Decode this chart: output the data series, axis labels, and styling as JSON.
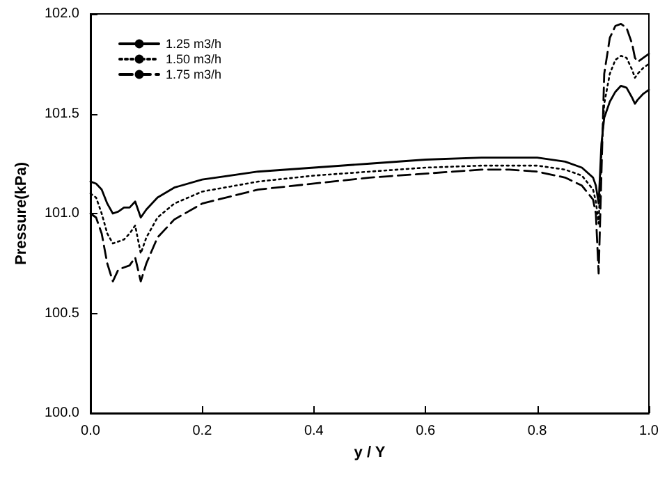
{
  "chart_data": {
    "type": "line",
    "xlabel": "y / Y",
    "ylabel": "Pressure(kPa)",
    "x": [
      0,
      0.01,
      0.02,
      0.03,
      0.04,
      0.05,
      0.06,
      0.07,
      0.08,
      0.09,
      0.1,
      0.12,
      0.15,
      0.2,
      0.3,
      0.4,
      0.5,
      0.6,
      0.7,
      0.75,
      0.8,
      0.85,
      0.88,
      0.9,
      0.905,
      0.91,
      0.915,
      0.92,
      0.93,
      0.94,
      0.95,
      0.96,
      0.97,
      0.975,
      0.98,
      0.99,
      1.0
    ],
    "series": [
      {
        "name": "1.25 m3/h",
        "color": "#000000",
        "line_style": "solid",
        "values": [
          101.16,
          101.15,
          101.12,
          101.05,
          101.0,
          101.01,
          101.03,
          101.03,
          101.06,
          100.98,
          101.02,
          101.08,
          101.13,
          101.17,
          101.21,
          101.23,
          101.25,
          101.27,
          101.28,
          101.28,
          101.28,
          101.26,
          101.23,
          101.18,
          101.14,
          101.05,
          101.35,
          101.48,
          101.56,
          101.61,
          101.64,
          101.63,
          101.58,
          101.55,
          101.57,
          101.6,
          101.62
        ]
      },
      {
        "name": "1.50 m3/h",
        "color": "#000000",
        "line_style": "dotted",
        "values": [
          101.1,
          101.08,
          101.0,
          100.9,
          100.85,
          100.86,
          100.87,
          100.9,
          100.94,
          100.8,
          100.88,
          100.98,
          101.05,
          101.11,
          101.16,
          101.19,
          101.21,
          101.23,
          101.24,
          101.24,
          101.24,
          101.22,
          101.19,
          101.12,
          101.06,
          100.95,
          101.3,
          101.55,
          101.7,
          101.77,
          101.79,
          101.78,
          101.72,
          101.68,
          101.7,
          101.73,
          101.75
        ]
      },
      {
        "name": "1.75 m3/h",
        "color": "#000000",
        "line_style": "dashed",
        "values": [
          101.0,
          100.98,
          100.9,
          100.75,
          100.66,
          100.72,
          100.73,
          100.74,
          100.78,
          100.66,
          100.75,
          100.88,
          100.97,
          101.05,
          101.12,
          101.15,
          101.18,
          101.2,
          101.22,
          101.22,
          101.21,
          101.18,
          101.14,
          101.07,
          101.0,
          100.7,
          101.2,
          101.7,
          101.88,
          101.94,
          101.95,
          101.93,
          101.85,
          101.78,
          101.76,
          101.78,
          101.8
        ]
      }
    ],
    "xlim": [
      0,
      1
    ],
    "xticks": [
      {
        "value": 0,
        "label": "0.0"
      },
      0.2,
      0.4,
      0.6,
      0.8,
      {
        "value": 1,
        "label": "1.0"
      }
    ],
    "ylim": [
      100,
      102
    ],
    "yticks": [
      {
        "value": 100,
        "label": "100.0"
      },
      100.5,
      {
        "value": 101,
        "label": "101.0"
      },
      101.5,
      {
        "value": 102,
        "label": "102.0"
      }
    ],
    "grid": false,
    "legend": "top left",
    "marker": "none"
  }
}
